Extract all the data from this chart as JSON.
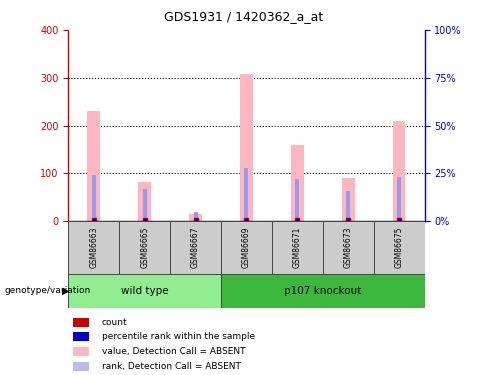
{
  "title": "GDS1931 / 1420362_a_at",
  "samples": [
    "GSM86663",
    "GSM86665",
    "GSM86667",
    "GSM86669",
    "GSM86671",
    "GSM86673",
    "GSM86675"
  ],
  "pink_values": [
    230,
    83,
    15,
    308,
    160,
    90,
    210
  ],
  "blue_values_pct": [
    24,
    17,
    5,
    28,
    22,
    16,
    23
  ],
  "absent_flags": [
    false,
    false,
    true,
    false,
    false,
    false,
    false
  ],
  "groups": [
    {
      "label": "wild type",
      "start": 0,
      "end": 2,
      "color": "#90EE90"
    },
    {
      "label": "p107 knockout",
      "start": 3,
      "end": 6,
      "color": "#3CB83C"
    }
  ],
  "ylim_left": [
    0,
    400
  ],
  "ylim_right": [
    0,
    100
  ],
  "yticks_left": [
    0,
    100,
    200,
    300,
    400
  ],
  "ytick_labels_left": [
    "0",
    "100",
    "200",
    "300",
    "400"
  ],
  "yticks_right_pct": [
    0,
    25,
    50,
    75,
    100
  ],
  "ytick_labels_right": [
    "0%",
    "25%",
    "50%",
    "75%",
    "100%"
  ],
  "grid_values": [
    100,
    200,
    300
  ],
  "pink_bar_width": 0.25,
  "blue_bar_width": 0.08,
  "pink_color": "#FFB6C1",
  "blue_color": "#9999EE",
  "red_dot_color": "#CC0000",
  "blue_dot_color": "#0000CC",
  "left_axis_color": "#CC0000",
  "right_axis_color": "#0000CC",
  "background_color": "#FFFFFF",
  "legend_colors": [
    "#CC0000",
    "#0000CC",
    "#FFB6C1",
    "#BBBBEE"
  ],
  "legend_labels": [
    "count",
    "percentile rank within the sample",
    "value, Detection Call = ABSENT",
    "rank, Detection Call = ABSENT"
  ]
}
